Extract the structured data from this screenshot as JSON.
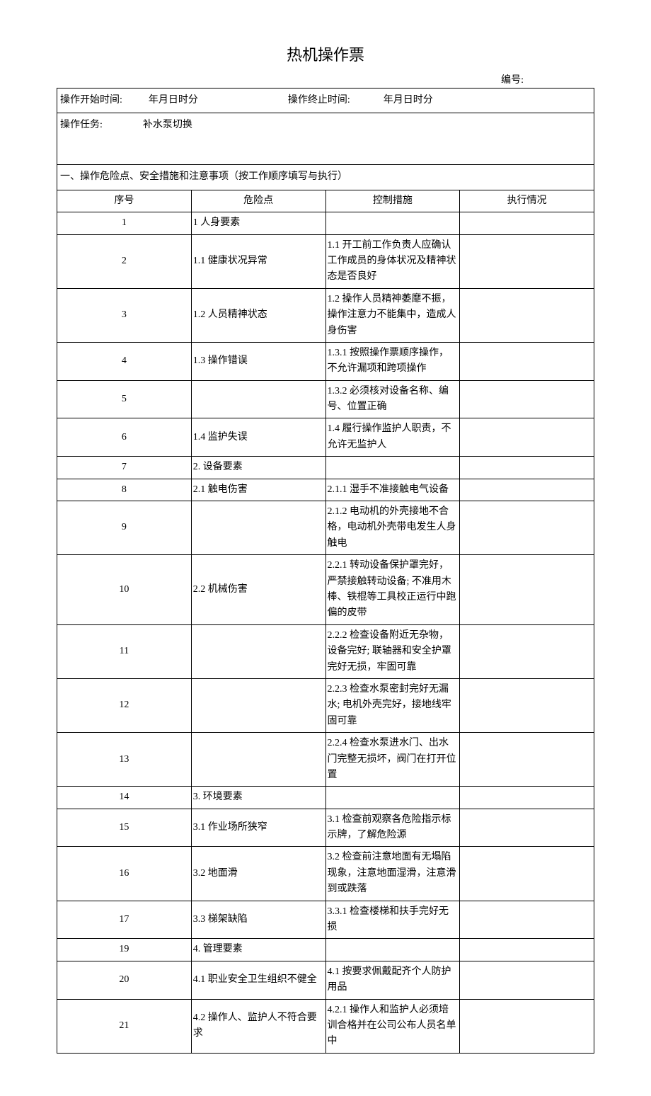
{
  "title": "热机操作票",
  "serial_label": "编号:",
  "header": {
    "start_label": "操作开始时间:",
    "start_value": "年月日时分",
    "end_label": "操作终止时间:",
    "end_value": "年月日时分"
  },
  "task": {
    "label": "操作任务:",
    "value": "补水泵切换"
  },
  "section_header": "一、操作危险点、安全措施和注意事项（按工作顺序填写与执行）",
  "columns": {
    "seq": "序号",
    "hazard": "危险点",
    "measure": "控制措施",
    "exec": "执行情况"
  },
  "rows": [
    {
      "seq": "1",
      "hazard": "1 人身要素",
      "measure": "",
      "exec": ""
    },
    {
      "seq": "2",
      "hazard": "1.1 健康状况异常",
      "measure": "1.1 开工前工作负责人应确认工作成员的身体状况及精神状态是否良好",
      "exec": ""
    },
    {
      "seq": "3",
      "hazard": "1.2 人员精神状态",
      "measure": "1.2 操作人员精神萎靡不振，操作注意力不能集中，造成人身伤害",
      "exec": ""
    },
    {
      "seq": "4",
      "hazard": "1.3 操作错误",
      "measure": "1.3.1 按照操作票顺序操作，不允许漏项和跨项操作",
      "exec": ""
    },
    {
      "seq": "5",
      "hazard": "",
      "measure": "1.3.2 必须核对设备名称、编号、位置正确",
      "exec": ""
    },
    {
      "seq": "6",
      "hazard": "1.4 监护失误",
      "measure": "1.4 履行操作监护人职责，不允许无监护人",
      "exec": ""
    },
    {
      "seq": "7",
      "hazard": "2. 设备要素",
      "measure": "",
      "exec": ""
    },
    {
      "seq": "8",
      "hazard": "2.1 触电伤害",
      "measure": "2.1.1 湿手不准接触电气设备",
      "exec": ""
    },
    {
      "seq": "9",
      "hazard": "",
      "measure": "2.1.2 电动机的外壳接地不合格，电动机外壳带电发生人身触电",
      "exec": ""
    },
    {
      "seq": "10",
      "hazard": "2.2 机械伤害",
      "measure": "2.2.1 转动设备保护罩完好，严禁接触转动设备; 不准用木棒、铁棍等工具校正运行中跑偏的皮带",
      "exec": ""
    },
    {
      "seq": "11",
      "hazard": "",
      "measure": "2.2.2 检查设备附近无杂物，设备完好; 联轴器和安全护罩完好无损，牢固可靠",
      "exec": ""
    },
    {
      "seq": "12",
      "hazard": "",
      "measure": "2.2.3 检查水泵密封完好无漏水; 电机外壳完好，接地线牢固可靠",
      "exec": ""
    },
    {
      "seq": "13",
      "hazard": "",
      "measure": "2.2.4 检查水泵进水门、出水门完整无损坏，阀门在打开位置",
      "exec": ""
    },
    {
      "seq": "14",
      "hazard": "3. 环境要素",
      "measure": "",
      "exec": ""
    },
    {
      "seq": "15",
      "hazard": "3.1 作业场所狭窄",
      "measure": "3.1 检查前观察各危险指示标示牌，了解危险源",
      "exec": ""
    },
    {
      "seq": "16",
      "hazard": "3.2 地面滑",
      "measure": "3.2 检查前注意地面有无塌陷现象，注意地面湿滑，注意滑到或跌落",
      "exec": ""
    },
    {
      "seq": "17",
      "hazard": "3.3 梯架缺陷",
      "measure": "3.3.1 检查楼梯和扶手完好无损",
      "exec": ""
    },
    {
      "seq": "19",
      "hazard": "4. 管理要素",
      "measure": "",
      "exec": ""
    },
    {
      "seq": "20",
      "hazard": "4.1 职业安全卫生组织不健全",
      "measure": "4.1 按要求佩戴配齐个人防护用品",
      "exec": ""
    },
    {
      "seq": "21",
      "hazard": "4.2 操作人、监护人不符合要求",
      "measure": "4.2.1 操作人和监护人必须培训合格并在公司公布人员名单中",
      "exec": ""
    }
  ]
}
